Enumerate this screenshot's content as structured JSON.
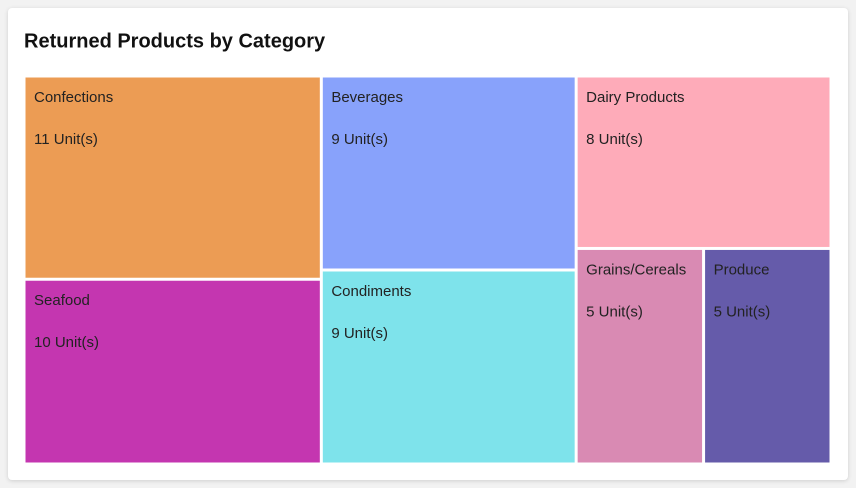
{
  "chart_data": {
    "type": "treemap",
    "title": "Returned Products by Category",
    "categories": [
      "Confections",
      "Seafood",
      "Beverages",
      "Condiments",
      "Dairy Products",
      "Grains/Cereals",
      "Produce"
    ],
    "values": [
      11,
      10,
      9,
      9,
      8,
      5,
      5
    ],
    "value_labels": [
      "11 Unit(s)",
      "10 Unit(s)",
      "9 Unit(s)",
      "9 Unit(s)",
      "8 Unit(s)",
      "5 Unit(s)",
      "5 Unit(s)"
    ],
    "colors": [
      "#ec9c54",
      "#c436b0",
      "#88a2fb",
      "#7ee3eb",
      "#feabb9",
      "#d98ab3",
      "#655baa"
    ]
  }
}
